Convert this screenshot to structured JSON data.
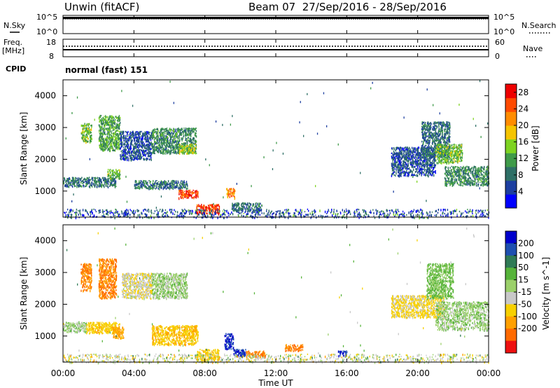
{
  "header": {
    "site": "Unwin (fitACF)",
    "beam_info": "Beam 07  27/Sep/2016 - 28/Sep/2016"
  },
  "top_panels": {
    "nsky_label": "N.Sky",
    "nsearch_label": "N.Search",
    "nsky_ticks": [
      "10^5",
      "10^0"
    ],
    "nsky_right_ticks": [
      "10^5",
      "10^0"
    ],
    "freq_label_1": "Freq.",
    "freq_label_2": "[MHz]",
    "freq_ticks": [
      "18",
      "8"
    ],
    "nave_label": "Nave",
    "nave_ticks": [
      "60",
      "0"
    ],
    "cpid_label": "CPID",
    "cpid_value": "normal (fast) 151"
  },
  "colors": {
    "power_scale": [
      "#0000ff",
      "#1d3fa0",
      "#2e6f66",
      "#3f9a49",
      "#7ed321",
      "#f5c400",
      "#ff8c00",
      "#ff4a00",
      "#ee0000"
    ],
    "velocity_scale": [
      "#0000cc",
      "#1e4fb0",
      "#2f7a55",
      "#56b33a",
      "#9bd06a",
      "#c8c8c8",
      "#f7d000",
      "#ffa000",
      "#ff6a00",
      "#ee1010"
    ]
  },
  "chart_data": [
    {
      "type": "heatmap",
      "title": "",
      "xlabel": "Time UT",
      "ylabel": "Slant Range [km]",
      "x_ticks": [
        "00:00",
        "04:00",
        "08:00",
        "12:00",
        "16:00",
        "20:00",
        "00:00"
      ],
      "x_range_hours": [
        0,
        24
      ],
      "y_ticks": [
        1000,
        2000,
        3000,
        4000
      ],
      "y_range_km": [
        180,
        4500
      ],
      "colorbar_label": "Power [dB]",
      "colorbar_ticks": [
        4,
        8,
        12,
        16,
        20,
        24,
        28
      ],
      "colorbar_range": [
        0,
        30
      ],
      "echo_regions": [
        {
          "t0": 0.0,
          "t1": 3.0,
          "r0": 1150,
          "r1": 1450,
          "level": 8
        },
        {
          "t0": 1.0,
          "t1": 1.6,
          "r0": 2550,
          "r1": 3150,
          "level": 14
        },
        {
          "t0": 2.0,
          "t1": 3.2,
          "r0": 2300,
          "r1": 3400,
          "level": 12
        },
        {
          "t0": 2.5,
          "t1": 3.2,
          "r0": 1400,
          "r1": 1700,
          "level": 14
        },
        {
          "t0": 3.2,
          "t1": 5.0,
          "r0": 2000,
          "r1": 2900,
          "level": 6
        },
        {
          "t0": 4.0,
          "t1": 7.0,
          "r0": 1100,
          "r1": 1350,
          "level": 8
        },
        {
          "t0": 5.0,
          "t1": 7.5,
          "r0": 2200,
          "r1": 3000,
          "level": 10
        },
        {
          "t0": 6.5,
          "t1": 7.5,
          "r0": 2200,
          "r1": 2500,
          "level": 16
        },
        {
          "t0": 6.5,
          "t1": 7.6,
          "r0": 800,
          "r1": 1050,
          "level": 26
        },
        {
          "t0": 7.5,
          "t1": 8.8,
          "r0": 300,
          "r1": 600,
          "level": 26
        },
        {
          "t0": 9.2,
          "t1": 9.7,
          "r0": 800,
          "r1": 1100,
          "level": 22
        },
        {
          "t0": 9.5,
          "t1": 11.2,
          "r0": 400,
          "r1": 650,
          "level": 8
        },
        {
          "t0": 0.0,
          "t1": 24.0,
          "r0": 180,
          "r1": 450,
          "level": 6
        },
        {
          "t0": 18.5,
          "t1": 21.0,
          "r0": 1500,
          "r1": 2400,
          "level": 6
        },
        {
          "t0": 20.2,
          "t1": 21.8,
          "r0": 2100,
          "r1": 3200,
          "level": 8
        },
        {
          "t0": 21.0,
          "t1": 22.5,
          "r0": 1900,
          "r1": 2500,
          "level": 14
        },
        {
          "t0": 21.5,
          "t1": 24.0,
          "r0": 1200,
          "r1": 1800,
          "level": 10
        }
      ]
    },
    {
      "type": "heatmap",
      "title": "",
      "xlabel": "Time UT",
      "ylabel": "Slant Range [km]",
      "x_ticks": [
        "00:00",
        "04:00",
        "08:00",
        "12:00",
        "16:00",
        "20:00",
        "00:00"
      ],
      "x_range_hours": [
        0,
        24
      ],
      "y_ticks": [
        1000,
        2000,
        3000,
        4000
      ],
      "y_range_km": [
        180,
        4500
      ],
      "colorbar_label": "Velocity [m s^-1]",
      "colorbar_ticks": [
        200,
        100,
        50,
        15,
        -15,
        -50,
        -100,
        -200
      ],
      "colorbar_range": [
        -250,
        250
      ],
      "echo_regions": [
        {
          "t0": 0.0,
          "t1": 1.3,
          "r0": 1150,
          "r1": 1450,
          "level": 0
        },
        {
          "t0": 1.3,
          "t1": 3.2,
          "r0": 1100,
          "r1": 1450,
          "level": -80
        },
        {
          "t0": 1.0,
          "t1": 1.6,
          "r0": 2450,
          "r1": 3300,
          "level": -200
        },
        {
          "t0": 2.0,
          "t1": 3.0,
          "r0": 2200,
          "r1": 3450,
          "level": -200
        },
        {
          "t0": 2.8,
          "t1": 3.4,
          "r0": 950,
          "r1": 1300,
          "level": -120
        },
        {
          "t0": 3.3,
          "t1": 5.0,
          "r0": 2200,
          "r1": 3000,
          "level": -40
        },
        {
          "t0": 5.0,
          "t1": 7.0,
          "r0": 2200,
          "r1": 3000,
          "level": 0
        },
        {
          "t0": 5.0,
          "t1": 7.6,
          "r0": 750,
          "r1": 1350,
          "level": -90
        },
        {
          "t0": 7.5,
          "t1": 8.8,
          "r0": 250,
          "r1": 600,
          "level": -80
        },
        {
          "t0": 9.1,
          "t1": 9.6,
          "r0": 600,
          "r1": 1100,
          "level": 200
        },
        {
          "t0": 9.6,
          "t1": 10.3,
          "r0": 350,
          "r1": 600,
          "level": 200
        },
        {
          "t0": 10.3,
          "t1": 11.4,
          "r0": 350,
          "r1": 550,
          "level": -200
        },
        {
          "t0": 12.5,
          "t1": 13.5,
          "r0": 550,
          "r1": 750,
          "level": -200
        },
        {
          "t0": 15.5,
          "t1": 16.0,
          "r0": 400,
          "r1": 550,
          "level": 200
        },
        {
          "t0": 0.0,
          "t1": 24.0,
          "r0": 180,
          "r1": 450,
          "level": -30
        },
        {
          "t0": 18.5,
          "t1": 21.5,
          "r0": 1600,
          "r1": 2300,
          "level": -60
        },
        {
          "t0": 20.5,
          "t1": 22.0,
          "r0": 2200,
          "r1": 3300,
          "level": 20
        },
        {
          "t0": 21.0,
          "t1": 24.0,
          "r0": 1200,
          "r1": 2100,
          "level": 0
        }
      ]
    }
  ]
}
